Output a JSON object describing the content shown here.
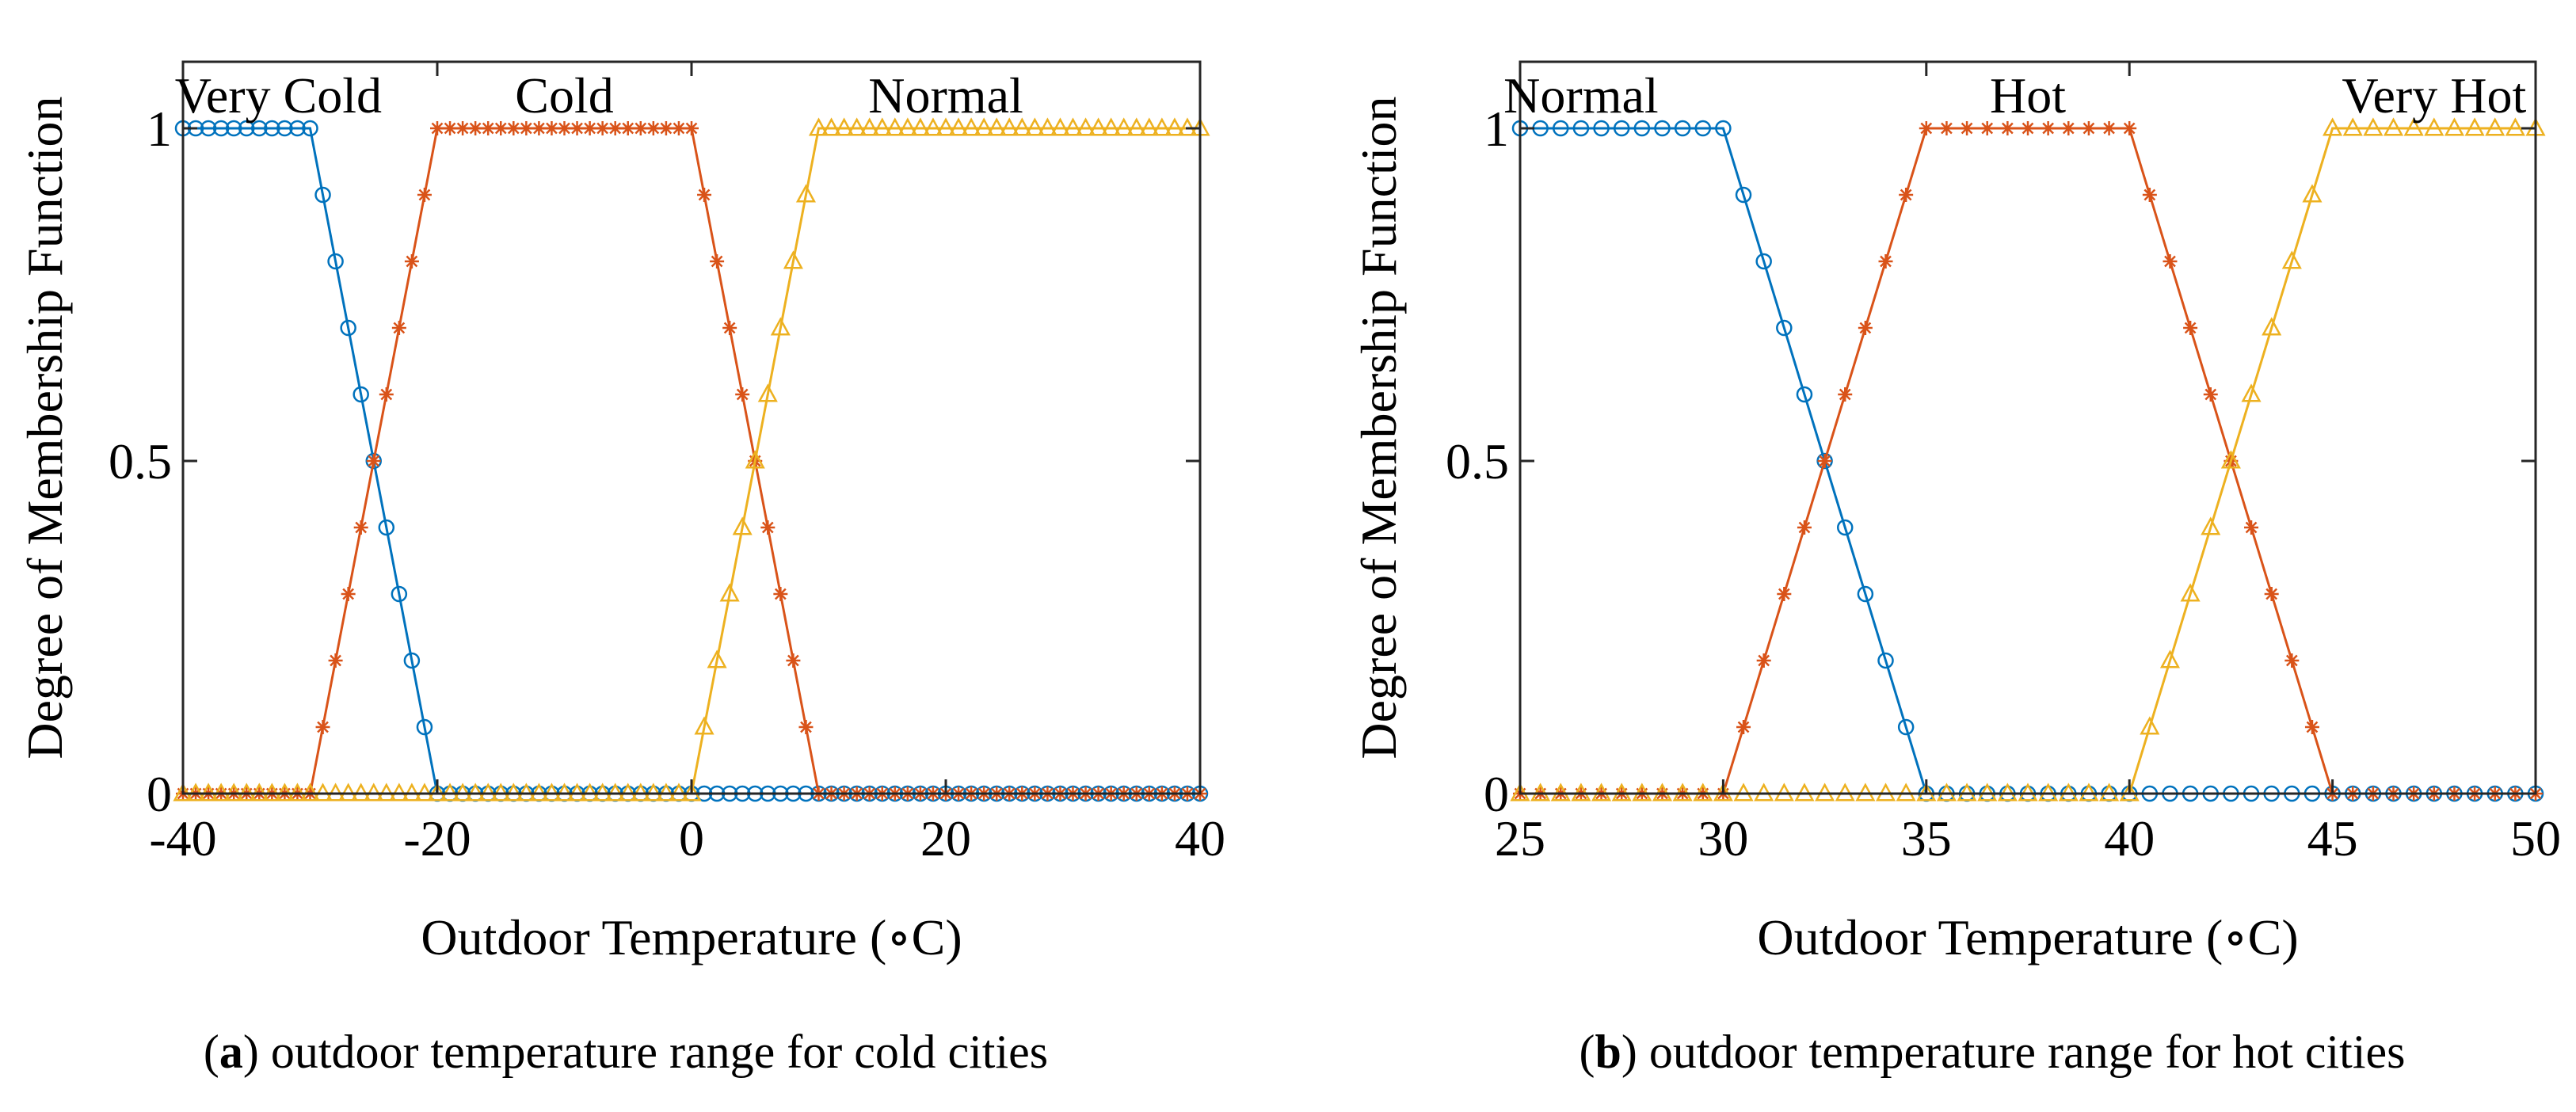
{
  "chart_data": [
    {
      "id": "a",
      "type": "line",
      "xlabel": "Outdoor Temperature (∘C)",
      "ylabel": "Degree of Membership Function",
      "xlim": [
        -40,
        40
      ],
      "ylim": [
        0,
        1.1
      ],
      "xticks": [
        -40,
        -20,
        0,
        20,
        40
      ],
      "xtick_labels": [
        "-40",
        "-20",
        "0",
        "20",
        "40"
      ],
      "yticks": [
        0,
        0.5,
        1
      ],
      "ytick_labels": [
        "0",
        "0.5",
        "1"
      ],
      "top_ticks": [
        -20,
        0
      ],
      "region_labels": [
        {
          "text": "Very Cold",
          "x": -32.5
        },
        {
          "text": "Cold",
          "x": -10
        },
        {
          "text": "Normal",
          "x": 20
        }
      ],
      "series": [
        {
          "name": "Very Cold",
          "color": "#0072BD",
          "marker": "circle",
          "trapezoid": [
            -40,
            -40,
            -30,
            -20
          ]
        },
        {
          "name": "Cold",
          "color": "#D95319",
          "marker": "asterisk",
          "trapezoid": [
            -30,
            -20,
            0,
            10
          ]
        },
        {
          "name": "Normal",
          "color": "#EDB120",
          "marker": "triangle",
          "trapezoid": [
            0,
            10,
            40,
            40
          ]
        }
      ],
      "marker_step": 1,
      "caption_letter": "a",
      "caption_text": ") outdoor temperature range for cold cities"
    },
    {
      "id": "b",
      "type": "line",
      "xlabel": "Outdoor Temperature (∘C)",
      "ylabel": "Degree of Membership Function",
      "xlim": [
        25,
        50
      ],
      "ylim": [
        0,
        1.1
      ],
      "xticks": [
        25,
        30,
        35,
        40,
        45,
        50
      ],
      "xtick_labels": [
        "25",
        "30",
        "35",
        "40",
        "45",
        "50"
      ],
      "yticks": [
        0,
        0.5,
        1
      ],
      "ytick_labels": [
        "0",
        "0.5",
        "1"
      ],
      "top_ticks": [
        35,
        40
      ],
      "region_labels": [
        {
          "text": "Normal",
          "x": 26.5
        },
        {
          "text": "Hot",
          "x": 37.5
        },
        {
          "text": "Very Hot",
          "x": 47.5
        }
      ],
      "series": [
        {
          "name": "Normal",
          "color": "#0072BD",
          "marker": "circle",
          "trapezoid": [
            25,
            25,
            30,
            35
          ]
        },
        {
          "name": "Hot",
          "color": "#D95319",
          "marker": "asterisk",
          "trapezoid": [
            30,
            35,
            40,
            45
          ]
        },
        {
          "name": "Very Hot",
          "color": "#EDB120",
          "marker": "triangle",
          "trapezoid": [
            40,
            45,
            50,
            50
          ]
        }
      ],
      "marker_step": 0.5,
      "caption_letter": "b",
      "caption_text": ") outdoor temperature range for hot cities"
    }
  ]
}
